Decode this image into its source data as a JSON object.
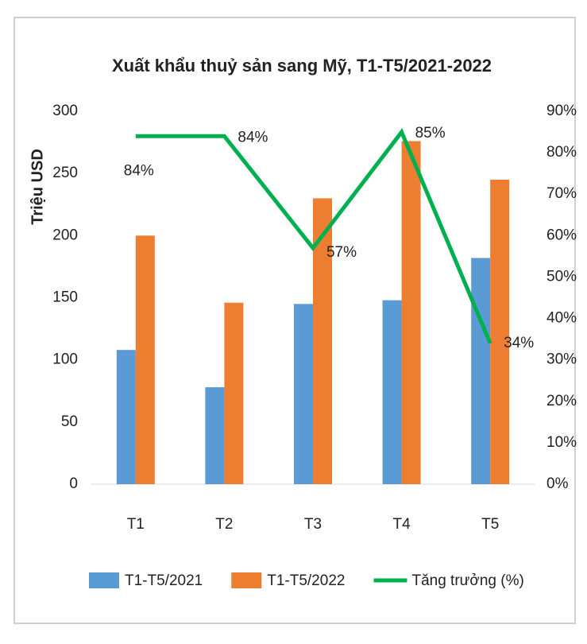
{
  "chart_data": {
    "type": "bar",
    "title": "Xuất khẩu thuỷ sản sang Mỹ, T1-T5/2021-2022",
    "y_label": "Triệu USD",
    "categories": [
      "T1",
      "T2",
      "T3",
      "T4",
      "T5"
    ],
    "series": [
      {
        "name": "T1-T5/2021",
        "type": "bar",
        "color": "#5b9bd5",
        "values": [
          108,
          78,
          145,
          148,
          182
        ]
      },
      {
        "name": "T1-T5/2022",
        "type": "bar",
        "color": "#ed7d31",
        "values": [
          200,
          146,
          230,
          276,
          245
        ]
      },
      {
        "name": "Tăng trưởng (%)",
        "type": "line",
        "axis": "y2",
        "color": "#00b050",
        "values": [
          84,
          84,
          57,
          85,
          34
        ],
        "value_labels": [
          "84%",
          "84%",
          "57%",
          "85%",
          "34%"
        ]
      }
    ],
    "ylim": [
      0,
      300
    ],
    "yticks": [
      0,
      50,
      100,
      150,
      200,
      250,
      300
    ],
    "y2lim": [
      0,
      90
    ],
    "y2ticks": [
      {
        "value": 0,
        "label": "0%"
      },
      {
        "value": 10,
        "label": "10%"
      },
      {
        "value": 20,
        "label": "20%"
      },
      {
        "value": 30,
        "label": "30%"
      },
      {
        "value": 40,
        "label": "40%"
      },
      {
        "value": 50,
        "label": "50%"
      },
      {
        "value": 60,
        "label": "60%"
      },
      {
        "value": 70,
        "label": "70%"
      },
      {
        "value": 80,
        "label": "80%"
      },
      {
        "value": 90,
        "label": "90%"
      }
    ],
    "grid": false,
    "legend": "bottom"
  }
}
